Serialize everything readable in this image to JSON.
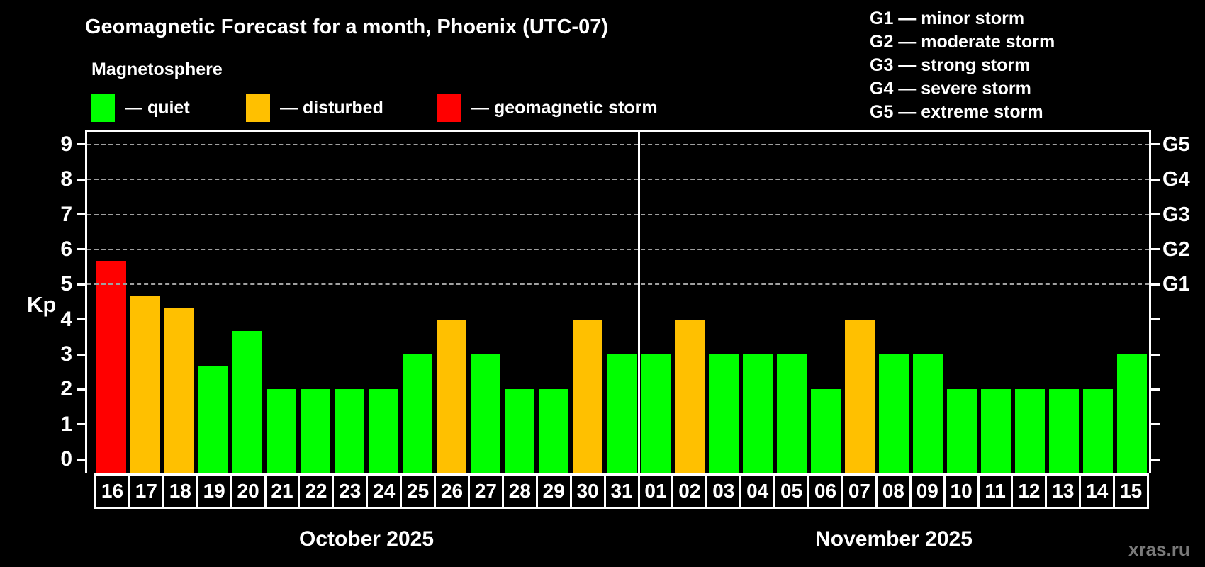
{
  "header": {
    "title": "Geomagnetic Forecast for a month, Phoenix (UTC-07)",
    "subtitle": "Magnetosphere"
  },
  "legend": {
    "items": [
      {
        "label": "— quiet",
        "status": "quiet",
        "color": "#00ff00"
      },
      {
        "label": "— disturbed",
        "status": "disturbed",
        "color": "#ffc000"
      },
      {
        "label": "— geomagnetic storm",
        "status": "storm",
        "color": "#ff0000"
      }
    ]
  },
  "g_legend": {
    "lines": [
      "G1 — minor storm",
      "G2 — moderate storm",
      "G3 — strong storm",
      "G4 — severe storm",
      "G5 — extreme storm"
    ]
  },
  "watermark": "xras.ru",
  "chart_data": {
    "type": "bar",
    "title": "Geomagnetic Forecast for a month, Phoenix (UTC-07)",
    "ylabel": "Kp",
    "ylim": [
      0,
      9
    ],
    "y_ticks": [
      0,
      1,
      2,
      3,
      4,
      5,
      6,
      7,
      8,
      9
    ],
    "gridlines": [
      5,
      6,
      7,
      8,
      9
    ],
    "grid_color": "#a0a0a0",
    "right_axis_labels": [
      {
        "text": "G1",
        "value": 5
      },
      {
        "text": "G2",
        "value": 6
      },
      {
        "text": "G3",
        "value": 7
      },
      {
        "text": "G4",
        "value": 8
      },
      {
        "text": "G5",
        "value": 9
      }
    ],
    "status_colors": {
      "quiet": "#00ff00",
      "disturbed": "#ffc000",
      "storm": "#ff0000"
    },
    "months": [
      {
        "label": "October 2025",
        "bars": [
          {
            "day": "16",
            "value": 5.67,
            "status": "storm"
          },
          {
            "day": "17",
            "value": 4.67,
            "status": "disturbed"
          },
          {
            "day": "18",
            "value": 4.33,
            "status": "disturbed"
          },
          {
            "day": "19",
            "value": 2.67,
            "status": "quiet"
          },
          {
            "day": "20",
            "value": 3.67,
            "status": "quiet"
          },
          {
            "day": "21",
            "value": 2,
            "status": "quiet"
          },
          {
            "day": "22",
            "value": 2,
            "status": "quiet"
          },
          {
            "day": "23",
            "value": 2,
            "status": "quiet"
          },
          {
            "day": "24",
            "value": 2,
            "status": "quiet"
          },
          {
            "day": "25",
            "value": 3,
            "status": "quiet"
          },
          {
            "day": "26",
            "value": 4,
            "status": "disturbed"
          },
          {
            "day": "27",
            "value": 3,
            "status": "quiet"
          },
          {
            "day": "28",
            "value": 2,
            "status": "quiet"
          },
          {
            "day": "29",
            "value": 2,
            "status": "quiet"
          },
          {
            "day": "30",
            "value": 4,
            "status": "disturbed"
          },
          {
            "day": "31",
            "value": 3,
            "status": "quiet"
          }
        ]
      },
      {
        "label": "November 2025",
        "bars": [
          {
            "day": "01",
            "value": 3,
            "status": "quiet"
          },
          {
            "day": "02",
            "value": 4,
            "status": "disturbed"
          },
          {
            "day": "03",
            "value": 3,
            "status": "quiet"
          },
          {
            "day": "04",
            "value": 3,
            "status": "quiet"
          },
          {
            "day": "05",
            "value": 3,
            "status": "quiet"
          },
          {
            "day": "06",
            "value": 2,
            "status": "quiet"
          },
          {
            "day": "07",
            "value": 4,
            "status": "disturbed"
          },
          {
            "day": "08",
            "value": 3,
            "status": "quiet"
          },
          {
            "day": "09",
            "value": 3,
            "status": "quiet"
          },
          {
            "day": "10",
            "value": 2,
            "status": "quiet"
          },
          {
            "day": "11",
            "value": 2,
            "status": "quiet"
          },
          {
            "day": "12",
            "value": 2,
            "status": "quiet"
          },
          {
            "day": "13",
            "value": 2,
            "status": "quiet"
          },
          {
            "day": "14",
            "value": 2,
            "status": "quiet"
          },
          {
            "day": "15",
            "value": 3,
            "status": "quiet"
          }
        ]
      }
    ]
  }
}
